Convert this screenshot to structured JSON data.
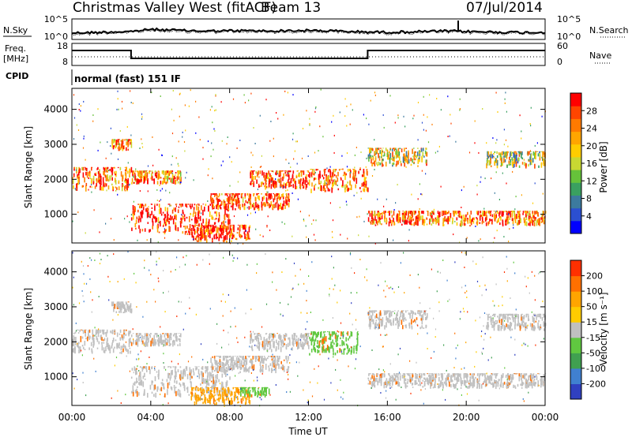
{
  "header": {
    "title": "Christmas Valley West (fitACF)",
    "beam": "Beam 13",
    "date": "07/Jul/2014"
  },
  "panels": {
    "sky_label": "N.Sky",
    "search_label": "N.Search",
    "freq_label_1": "Freq.",
    "freq_label_2": "[MHz]",
    "nave_label": "Nave",
    "cpid_label": "CPID",
    "cpid_value": "normal (fast) 151 IF"
  },
  "chart_data": [
    {
      "type": "line",
      "name": "noise",
      "yticks_left": [
        "10^5",
        "10^0"
      ],
      "yticks_right": [
        "10^5",
        "10^0"
      ],
      "x_hours": [
        0,
        1,
        2,
        3,
        4,
        5,
        6,
        7,
        8,
        9,
        10,
        11,
        12,
        13,
        14,
        15,
        16,
        17,
        18,
        19,
        20,
        21,
        22,
        23,
        24
      ],
      "sky_level": [
        0.35,
        0.38,
        0.42,
        0.45,
        0.6,
        0.55,
        0.5,
        0.48,
        0.5,
        0.5,
        0.48,
        0.5,
        0.52,
        0.5,
        0.45,
        0.42,
        0.4,
        0.42,
        0.45,
        0.48,
        0.45,
        0.42,
        0.4,
        0.38,
        0.4
      ]
    },
    {
      "type": "line",
      "name": "frequency",
      "yticks_left": [
        "18",
        "8"
      ],
      "yticks_right": [
        "60",
        "0"
      ],
      "freq_steps": [
        [
          0,
          3.0,
          "high"
        ],
        [
          3.0,
          15.0,
          "low"
        ],
        [
          15.0,
          24,
          "high"
        ]
      ]
    },
    {
      "type": "heatmap",
      "name": "power",
      "ylabel": "Slant Range [km]",
      "yticks": [
        "1000",
        "2000",
        "3000",
        "4000"
      ],
      "y_values": [
        1000,
        2000,
        3000,
        4000
      ],
      "ylim": [
        180,
        4600
      ],
      "xlim": [
        0,
        24
      ],
      "colorbar_label": "Power [dB]",
      "colorbar_ticks": [
        "4",
        "8",
        "12",
        "16",
        "20",
        "24",
        "28"
      ],
      "colorbar_colors": [
        "#0000ff",
        "#2b4fd1",
        "#3c7a9e",
        "#3aa060",
        "#66c23a",
        "#c8d832",
        "#ffcc00",
        "#ffa500",
        "#ff7a00",
        "#ff4500",
        "#ff0000"
      ],
      "bands": [
        {
          "x0": 0.0,
          "x1": 3.0,
          "y0": 1650,
          "y1": 2350,
          "level": 0.85
        },
        {
          "x0": 3.0,
          "x1": 5.5,
          "y0": 1850,
          "y1": 2250,
          "level": 0.8
        },
        {
          "x0": 2.0,
          "x1": 3.0,
          "y0": 2800,
          "y1": 3150,
          "level": 0.75
        },
        {
          "x0": 3.0,
          "x1": 8.0,
          "y0": 400,
          "y1": 1300,
          "level": 0.95
        },
        {
          "x0": 6.0,
          "x1": 9.0,
          "y0": 180,
          "y1": 700,
          "level": 0.95
        },
        {
          "x0": 7.0,
          "x1": 11.0,
          "y0": 1100,
          "y1": 1600,
          "level": 0.9
        },
        {
          "x0": 9.0,
          "x1": 12.0,
          "y0": 1700,
          "y1": 2250,
          "level": 0.9
        },
        {
          "x0": 12.0,
          "x1": 15.0,
          "y0": 1600,
          "y1": 2300,
          "level": 0.85
        },
        {
          "x0": 15.0,
          "x1": 24.0,
          "y0": 650,
          "y1": 1100,
          "level": 0.85
        },
        {
          "x0": 15.0,
          "x1": 18.0,
          "y0": 2350,
          "y1": 2900,
          "level": 0.6
        },
        {
          "x0": 21.0,
          "x1": 24.0,
          "y0": 2300,
          "y1": 2800,
          "level": 0.55
        }
      ]
    },
    {
      "type": "heatmap",
      "name": "velocity",
      "ylabel": "Slant Range [km]",
      "yticks": [
        "1000",
        "2000",
        "3000",
        "4000"
      ],
      "y_values": [
        1000,
        2000,
        3000,
        4000
      ],
      "ylim": [
        180,
        4600
      ],
      "xlim": [
        0,
        24
      ],
      "xlabel": "Time UT",
      "xticks": [
        "00:00",
        "04:00",
        "08:00",
        "12:00",
        "16:00",
        "20:00",
        "00:00"
      ],
      "x_values": [
        0,
        4,
        8,
        12,
        16,
        20,
        24
      ],
      "colorbar_label": "Velocity [m s⁻¹]",
      "colorbar_ticks": [
        "200",
        "100",
        "50",
        "15",
        "-15",
        "-50",
        "-100",
        "-200"
      ],
      "colorbar_colors": [
        "#3040c0",
        "#4080d0",
        "#40a050",
        "#60c840",
        "#c0c0c0",
        "#ffcc00",
        "#ffa500",
        "#ff7000",
        "#ff3000"
      ],
      "bands": [
        {
          "x0": 0.0,
          "x1": 3.0,
          "y0": 1650,
          "y1": 2350,
          "color": "#c0c0c0"
        },
        {
          "x0": 3.0,
          "x1": 5.5,
          "y0": 1850,
          "y1": 2250,
          "color": "#c0c0c0"
        },
        {
          "x0": 2.0,
          "x1": 3.0,
          "y0": 2800,
          "y1": 3150,
          "color": "#c0c0c0"
        },
        {
          "x0": 3.0,
          "x1": 8.0,
          "y0": 400,
          "y1": 1300,
          "color": "#c0c0c0"
        },
        {
          "x0": 6.0,
          "x1": 9.0,
          "y0": 180,
          "y1": 700,
          "color": "#ffa500"
        },
        {
          "x0": 8.5,
          "x1": 10.0,
          "y0": 400,
          "y1": 700,
          "color": "#60c840"
        },
        {
          "x0": 7.0,
          "x1": 11.0,
          "y0": 1100,
          "y1": 1600,
          "color": "#c0c0c0"
        },
        {
          "x0": 9.0,
          "x1": 12.0,
          "y0": 1700,
          "y1": 2250,
          "color": "#c0c0c0"
        },
        {
          "x0": 12.0,
          "x1": 14.5,
          "y0": 1600,
          "y1": 2300,
          "color": "#60c840"
        },
        {
          "x0": 15.0,
          "x1": 24.0,
          "y0": 650,
          "y1": 1100,
          "color": "#c0c0c0"
        },
        {
          "x0": 15.0,
          "x1": 18.0,
          "y0": 2350,
          "y1": 2900,
          "color": "#c0c0c0"
        },
        {
          "x0": 21.0,
          "x1": 24.0,
          "y0": 2300,
          "y1": 2800,
          "color": "#c0c0c0"
        }
      ]
    }
  ]
}
